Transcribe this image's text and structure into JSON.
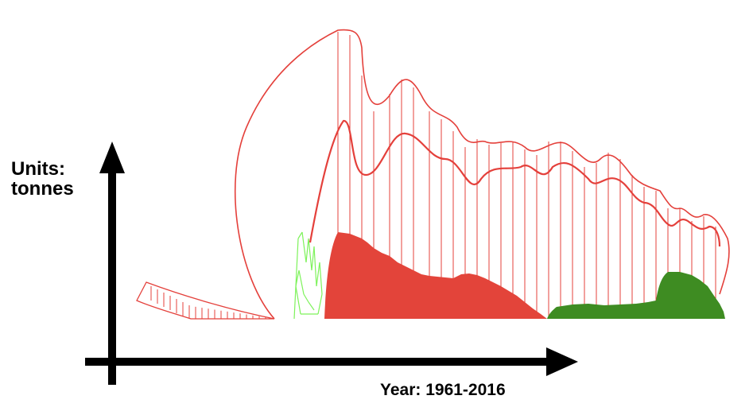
{
  "chart": {
    "ylabel_line1": "Units:",
    "ylabel_line2": "tonnes",
    "xlabel": "Year: 1961-2016"
  },
  "colors": {
    "outline_red": "#e4403b",
    "fill_red": "#e3443a",
    "fill_green": "#3e8c22",
    "outline_green": "#7df25a",
    "axis": "#000000"
  },
  "chart_data": {
    "type": "area",
    "title": "",
    "xlabel": "Year: 1961-2016",
    "ylabel": "Units: tonnes",
    "x_range": [
      1961,
      2016
    ],
    "grid": false,
    "legend": "none"
  }
}
